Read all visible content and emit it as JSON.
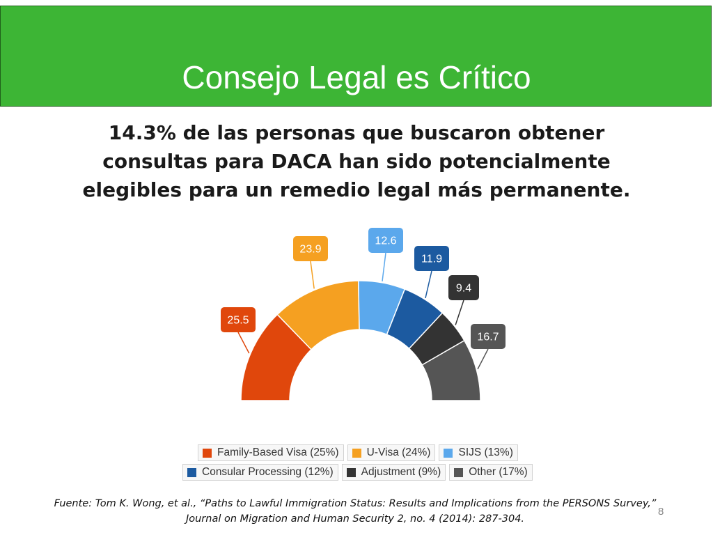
{
  "slide": {
    "title": "Consejo Legal es Crítico",
    "subtitle": "14.3%  de las personas que buscaron obtener consultas para DACA han sido potencialmente elegibles para un remedio legal más permanente.",
    "source_line1": "Fuente: Tom K. Wong, et al., “Paths to Lawful Immigration Status: Results and Implications from the PERSONS Survey,”",
    "source_line2": "Journal on Migration and Human Security 2, no. 4 (2014): 287-304.",
    "page_number": "8",
    "banner_color": "#3db535"
  },
  "chart_data": {
    "type": "pie",
    "variant": "half-donut",
    "categories": [
      "Family-Based Visa (25%)",
      "U-Visa (24%)",
      "SIJS (13%)",
      "Consular Processing (12%)",
      "Adjustment (9%)",
      "Other (17%)"
    ],
    "values": [
      25.5,
      23.9,
      12.6,
      11.9,
      9.4,
      16.7
    ],
    "data_labels": [
      "25.5",
      "23.9",
      "12.6",
      "11.9",
      "9.4",
      "16.7"
    ],
    "colors": [
      "#e0470c",
      "#f5a021",
      "#5ba8ec",
      "#1c5aa0",
      "#333333",
      "#555555"
    ],
    "legend_position": "bottom"
  }
}
